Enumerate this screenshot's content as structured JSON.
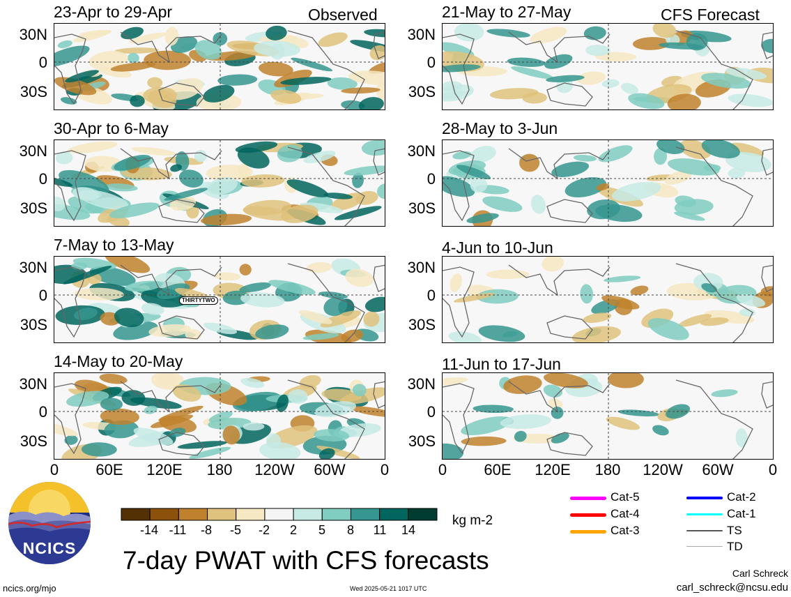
{
  "observed_label": "Observed",
  "forecast_label": "CFS Forecast",
  "panels_left": [
    {
      "title": "23-Apr to 29-Apr"
    },
    {
      "title": "30-Apr to 6-May"
    },
    {
      "title": "7-May to 13-May",
      "storm_label": "THIRTYTWO"
    },
    {
      "title": "14-May to 20-May"
    }
  ],
  "panels_right": [
    {
      "title": "21-May to 27-May"
    },
    {
      "title": "28-May to 3-Jun"
    },
    {
      "title": "4-Jun to 10-Jun"
    },
    {
      "title": "11-Jun to 17-Jun"
    }
  ],
  "lat_labels": [
    "30N",
    "0",
    "30S"
  ],
  "lon_labels": [
    "0",
    "60E",
    "120E",
    "180",
    "120W",
    "60W",
    "0"
  ],
  "colorbar": {
    "labels": [
      "-14",
      "-11",
      "-8",
      "-5",
      "-2",
      "2",
      "5",
      "8",
      "11",
      "14"
    ],
    "colors": [
      "#543005",
      "#8c510a",
      "#bf812d",
      "#dfc27d",
      "#f6e8c3",
      "#f5f5f5",
      "#c7eae5",
      "#80cdc1",
      "#35978f",
      "#01665e",
      "#003c30"
    ],
    "units": "kg m-2"
  },
  "legend": [
    {
      "label": "Cat-5",
      "color": "#ff00ff"
    },
    {
      "label": "Cat-4",
      "color": "#ff0000"
    },
    {
      "label": "Cat-3",
      "color": "#ffa500"
    },
    {
      "label": "Cat-2",
      "color": "#0000ff"
    },
    {
      "label": "Cat-1",
      "color": "#00ffff"
    },
    {
      "label": "TS",
      "color": "#555555"
    },
    {
      "label": "TD",
      "color": "#aaaaaa"
    }
  ],
  "logo_text": "NCICS",
  "main_title": "7-day PWAT with CFS forecasts",
  "footer": {
    "url": "ncics.org/mjo",
    "timestamp": "Wed 2025-05-21 1017 UTC",
    "author": "Carl Schreck",
    "email": "carl_schreck@ncsu.edu"
  }
}
